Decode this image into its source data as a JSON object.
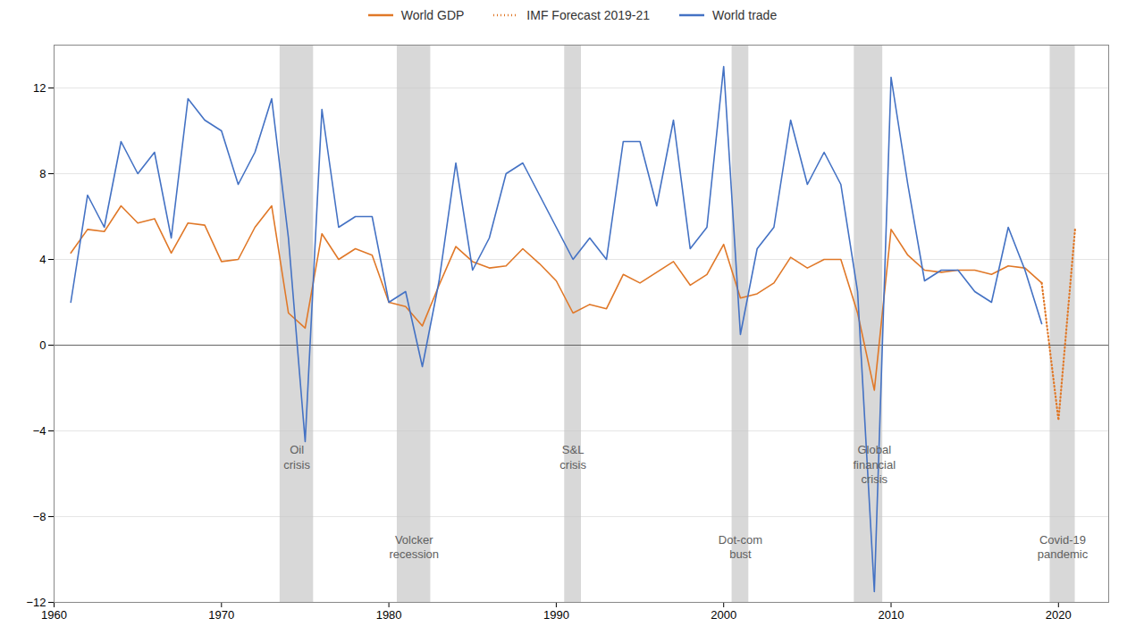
{
  "chart_data": {
    "type": "line",
    "x": [
      1961,
      1962,
      1963,
      1964,
      1965,
      1966,
      1967,
      1968,
      1969,
      1970,
      1971,
      1972,
      1973,
      1974,
      1975,
      1976,
      1977,
      1978,
      1979,
      1980,
      1981,
      1982,
      1983,
      1984,
      1985,
      1986,
      1987,
      1988,
      1989,
      1990,
      1991,
      1992,
      1993,
      1994,
      1995,
      1996,
      1997,
      1998,
      1999,
      2000,
      2001,
      2002,
      2003,
      2004,
      2005,
      2006,
      2007,
      2008,
      2009,
      2010,
      2011,
      2012,
      2013,
      2014,
      2015,
      2016,
      2017,
      2018,
      2019,
      2020,
      2021
    ],
    "series": [
      {
        "name": "World GDP",
        "color": "#E07828",
        "line_style": "solid",
        "values": [
          4.3,
          5.4,
          5.3,
          6.5,
          5.7,
          5.9,
          4.3,
          5.7,
          5.6,
          3.9,
          4.0,
          5.5,
          6.5,
          1.5,
          0.8,
          5.2,
          4.0,
          4.5,
          4.2,
          2.0,
          1.8,
          0.9,
          2.8,
          4.6,
          3.9,
          3.6,
          3.7,
          4.5,
          3.8,
          3.0,
          1.5,
          1.9,
          1.7,
          3.3,
          2.9,
          3.4,
          3.9,
          2.8,
          3.3,
          4.7,
          2.2,
          2.4,
          2.9,
          4.1,
          3.6,
          4.0,
          4.0,
          1.5,
          -2.1,
          5.4,
          4.2,
          3.5,
          3.4,
          3.5,
          3.5,
          3.3,
          3.7,
          3.6,
          2.9,
          null,
          null
        ]
      },
      {
        "name": "IMF Forecast 2019-21",
        "color": "#E07828",
        "line_style": "dotted",
        "values": [
          null,
          null,
          null,
          null,
          null,
          null,
          null,
          null,
          null,
          null,
          null,
          null,
          null,
          null,
          null,
          null,
          null,
          null,
          null,
          null,
          null,
          null,
          null,
          null,
          null,
          null,
          null,
          null,
          null,
          null,
          null,
          null,
          null,
          null,
          null,
          null,
          null,
          null,
          null,
          null,
          null,
          null,
          null,
          null,
          null,
          null,
          null,
          null,
          null,
          null,
          null,
          null,
          null,
          null,
          null,
          null,
          null,
          null,
          2.9,
          -3.5,
          5.5
        ]
      },
      {
        "name": "World trade",
        "color": "#4472C4",
        "line_style": "solid",
        "values": [
          2.0,
          7.0,
          5.5,
          9.5,
          8.0,
          9.0,
          5.0,
          11.5,
          10.5,
          10.0,
          7.5,
          9.0,
          11.5,
          5.0,
          -4.5,
          11.0,
          5.5,
          6.0,
          6.0,
          2.0,
          2.5,
          -1.0,
          3.0,
          8.5,
          3.5,
          5.0,
          8.0,
          8.5,
          7.0,
          5.5,
          4.0,
          5.0,
          4.0,
          9.5,
          9.5,
          6.5,
          10.5,
          4.5,
          5.5,
          13.0,
          0.5,
          4.5,
          5.5,
          10.5,
          7.5,
          9.0,
          7.5,
          2.5,
          -11.5,
          12.5,
          7.5,
          3.0,
          3.5,
          3.5,
          2.5,
          2.0,
          5.5,
          3.5,
          1.0,
          null,
          null
        ]
      }
    ],
    "xlim": [
      1960,
      2023
    ],
    "xticks": [
      1960,
      1970,
      1980,
      1990,
      2000,
      2010,
      2020
    ],
    "ylim": [
      -12,
      14
    ],
    "yticks": [
      -12,
      -8,
      -4,
      0,
      4,
      8,
      12
    ],
    "grid": true,
    "legend": "top",
    "zero_line": 0,
    "recession_bands": [
      {
        "x0": 1973.5,
        "x1": 1975.5
      },
      {
        "x0": 1980.5,
        "x1": 1982.5
      },
      {
        "x0": 1990.5,
        "x1": 1991.5
      },
      {
        "x0": 2000.5,
        "x1": 2001.5
      },
      {
        "x0": 2007.8,
        "x1": 2009.5
      },
      {
        "x0": 2019.5,
        "x1": 2021.0
      }
    ],
    "annotations": [
      {
        "text": "Oil\ncrisis",
        "x": 1974.5,
        "y": -4.6
      },
      {
        "text": "S&L\ncrisis",
        "x": 1991.0,
        "y": -4.6
      },
      {
        "text": "Global\nfinancial\ncrisis",
        "x": 2009.0,
        "y": -4.6
      },
      {
        "text": "Volcker\nrecession",
        "x": 1981.5,
        "y": -8.8
      },
      {
        "text": "Dot-com\nbust",
        "x": 2001.0,
        "y": -8.8
      },
      {
        "text": "Covid-19\npandemic",
        "x": 2020.25,
        "y": -8.8
      }
    ]
  }
}
